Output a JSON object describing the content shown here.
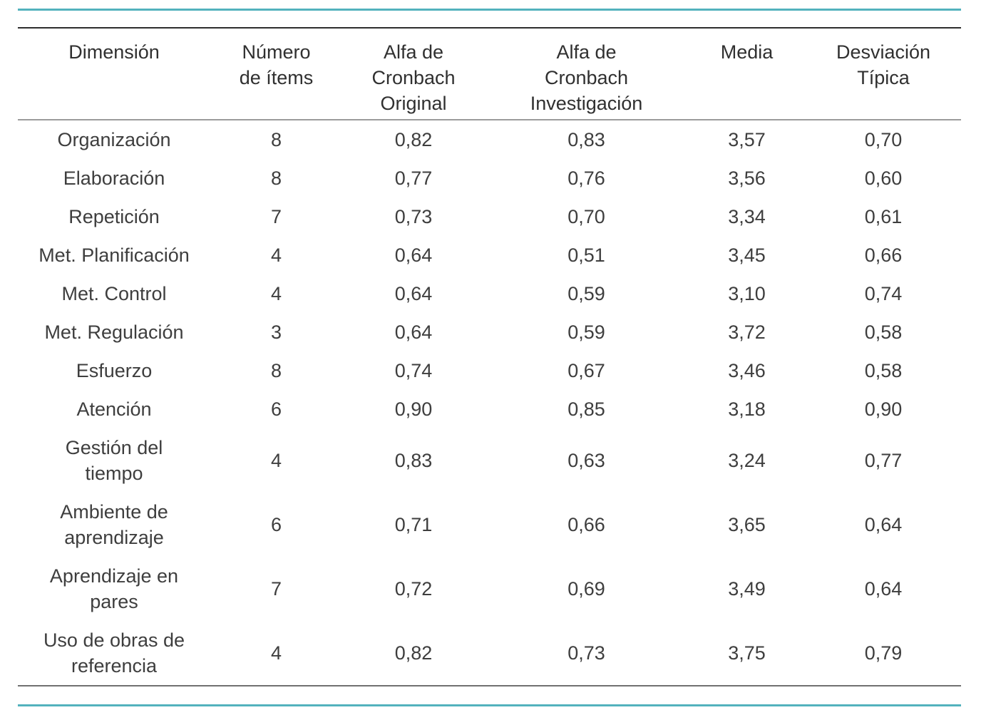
{
  "page": {
    "accent_color": "#53b2bd"
  },
  "table": {
    "columns": {
      "dimension": "Dimensión",
      "num_items": "Número\nde ítems",
      "alpha_original": "Alfa de\nCronbach\nOriginal",
      "alpha_investigacion": "Alfa de\nCronbach\nInvestigación",
      "media": "Media",
      "desviacion": "Desviación\nTípica"
    },
    "rows": [
      {
        "cells": [
          "Organización",
          "8",
          "0,82",
          "0,83",
          "3,57",
          "0,70"
        ]
      },
      {
        "cells": [
          "Elaboración",
          "8",
          "0,77",
          "0,76",
          "3,56",
          "0,60"
        ]
      },
      {
        "cells": [
          "Repetición",
          "7",
          "0,73",
          "0,70",
          "3,34",
          "0,61"
        ]
      },
      {
        "cells": [
          "Met. Planificación",
          "4",
          "0,64",
          "0,51",
          "3,45",
          "0,66"
        ]
      },
      {
        "cells": [
          "Met. Control",
          "4",
          "0,64",
          "0,59",
          "3,10",
          "0,74"
        ]
      },
      {
        "cells": [
          "Met. Regulación",
          "3",
          "0,64",
          "0,59",
          "3,72",
          "0,58"
        ]
      },
      {
        "cells": [
          "Esfuerzo",
          "8",
          "0,74",
          "0,67",
          "3,46",
          "0,58"
        ]
      },
      {
        "cells": [
          "Atención",
          "6",
          "0,90",
          "0,85",
          "3,18",
          "0,90"
        ]
      },
      {
        "cells": [
          "Gestión del\ntiempo",
          "4",
          "0,83",
          "0,63",
          "3,24",
          "0,77"
        ]
      },
      {
        "cells": [
          "Ambiente de\naprendizaje",
          "6",
          "0,71",
          "0,66",
          "3,65",
          "0,64"
        ]
      },
      {
        "cells": [
          "Aprendizaje en\npares",
          "7",
          "0,72",
          "0,69",
          "3,49",
          "0,64"
        ]
      },
      {
        "cells": [
          "Uso de obras de\nreferencia",
          "4",
          "0,82",
          "0,73",
          "3,75",
          "0,79"
        ]
      }
    ]
  }
}
